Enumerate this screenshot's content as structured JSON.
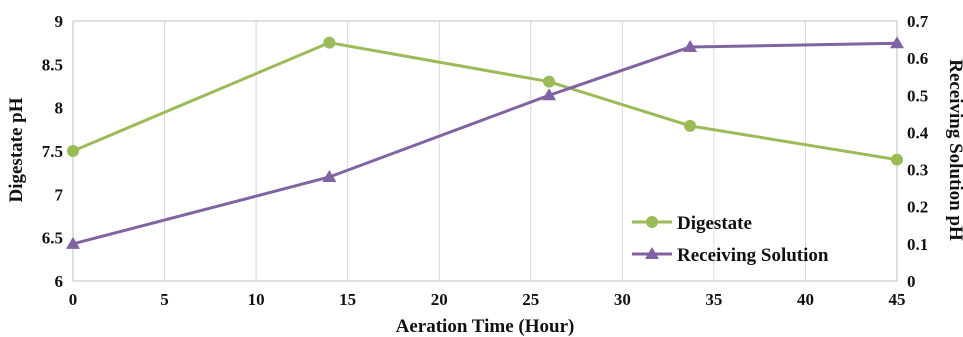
{
  "chart_data": {
    "type": "line",
    "xlabel": "Aeration Time (Hour)",
    "ylabel": "Digestate pH",
    "y2label": "Receiving Solution pH",
    "xlim": [
      0,
      45
    ],
    "ylim": [
      6,
      9
    ],
    "y2lim": [
      0,
      0.7
    ],
    "x_ticks": [
      "0",
      "5",
      "10",
      "15",
      "20",
      "25",
      "30",
      "35",
      "40",
      "45"
    ],
    "y_ticks": [
      "6",
      "6.5",
      "7",
      "7.5",
      "8",
      "8.5",
      "9"
    ],
    "y2_ticks": [
      "0",
      "0.1",
      "0.2",
      "0.3",
      "0.4",
      "0.5",
      "0.6",
      "0.7"
    ],
    "grid": "vertical",
    "legend_position": "bottom-right",
    "series": [
      {
        "name": "Digestate",
        "axis": "left",
        "color": "#9bbb59",
        "marker": "circle",
        "x": [
          0,
          14,
          26,
          33.7,
          45
        ],
        "y": [
          7.5,
          8.75,
          8.3,
          7.79,
          7.4
        ]
      },
      {
        "name": "Receiving Solution",
        "axis": "right",
        "color": "#8064a2",
        "marker": "triangle",
        "x": [
          0,
          14,
          26,
          33.7,
          45
        ],
        "y": [
          0.1,
          0.28,
          0.5,
          0.63,
          0.64
        ]
      }
    ]
  }
}
